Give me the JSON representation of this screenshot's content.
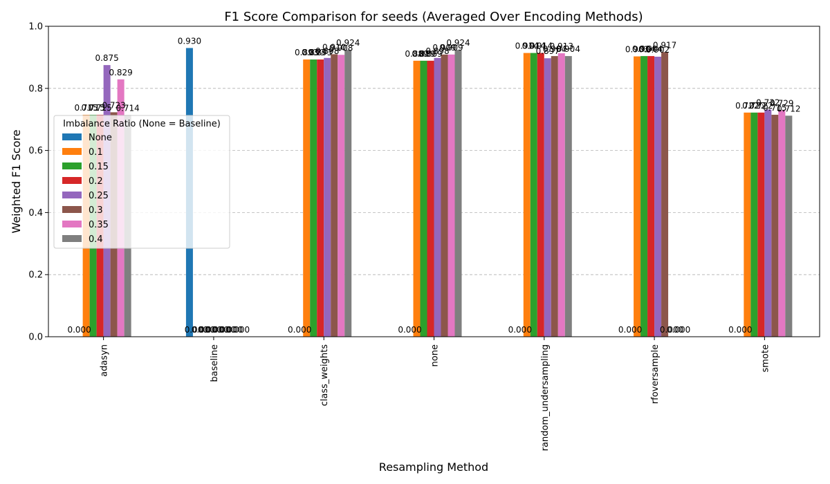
{
  "chart_data": {
    "type": "bar",
    "title": "F1 Score Comparison for seeds (Averaged Over Encoding Methods)",
    "xlabel": "Resampling Method",
    "ylabel": "Weighted F1 Score",
    "ylim": [
      0,
      1.0
    ],
    "yticks": [
      "0.0",
      "0.2",
      "0.4",
      "0.6",
      "0.8",
      "1.0"
    ],
    "grid": "y-dashed",
    "categories": [
      "adasyn",
      "baseline",
      "class_weights",
      "none",
      "random_undersampling",
      "rfoversample",
      "smote"
    ],
    "legend": {
      "title": "Imbalance Ratio (None = Baseline)",
      "placement": "center-left"
    },
    "series": [
      {
        "name": "None",
        "color": "#1f77b4",
        "values": [
          0,
          0.93,
          0,
          0,
          0,
          0,
          0
        ],
        "labels": [
          "0.000",
          "0.930",
          "0.000",
          "0.000",
          "0.000",
          "0.000",
          "0.000"
        ]
      },
      {
        "name": "0.1",
        "color": "#ff7f0e",
        "values": [
          0.715,
          0,
          0.893,
          0.889,
          0.914,
          0.903,
          0.722
        ],
        "labels": [
          "0.715",
          "0.000",
          "0.893",
          "0.889",
          "0.914",
          "0.903",
          "0.722"
        ]
      },
      {
        "name": "0.15",
        "color": "#2ca02c",
        "values": [
          0.715,
          0,
          0.893,
          0.889,
          0.914,
          0.904,
          0.722
        ],
        "labels": [
          "0.715",
          "0.000",
          "0.893",
          "0.889",
          "0.914",
          "0.904",
          "0.722"
        ]
      },
      {
        "name": "0.2",
        "color": "#d62728",
        "values": [
          0.715,
          0,
          0.893,
          0.889,
          0.914,
          0.904,
          0.722
        ],
        "labels": [
          "0.715",
          "0.000",
          "0.893",
          "0.889",
          "0.914",
          "0.904",
          "0.722"
        ]
      },
      {
        "name": "0.25",
        "color": "#9467bd",
        "values": [
          0.875,
          0,
          0.898,
          0.898,
          0.897,
          0.902,
          0.732
        ],
        "labels": [
          "0.875",
          "0.000",
          "0.898",
          "0.898",
          "0.897",
          "0.902",
          "0.732"
        ]
      },
      {
        "name": "0.3",
        "color": "#8c564b",
        "values": [
          0.723,
          0,
          0.91,
          0.909,
          0.904,
          0.917,
          0.715
        ],
        "labels": [
          "0.723",
          "0.000",
          "0.910",
          "0.909",
          "0.904",
          "0.917",
          "0.715"
        ]
      },
      {
        "name": "0.35",
        "color": "#e377c2",
        "values": [
          0.829,
          0,
          0.908,
          0.909,
          0.913,
          0,
          0.729
        ],
        "labels": [
          "0.829",
          "0.000",
          "0.908",
          "0.909",
          "0.913",
          "0.000",
          "0.729"
        ]
      },
      {
        "name": "0.4",
        "color": "#7f7f7f",
        "values": [
          0.714,
          0,
          0.924,
          0.924,
          0.904,
          0,
          0.712
        ],
        "labels": [
          "0.714",
          "0.000",
          "0.924",
          "0.924",
          "0.904",
          "0.000",
          "0.712"
        ]
      }
    ]
  }
}
